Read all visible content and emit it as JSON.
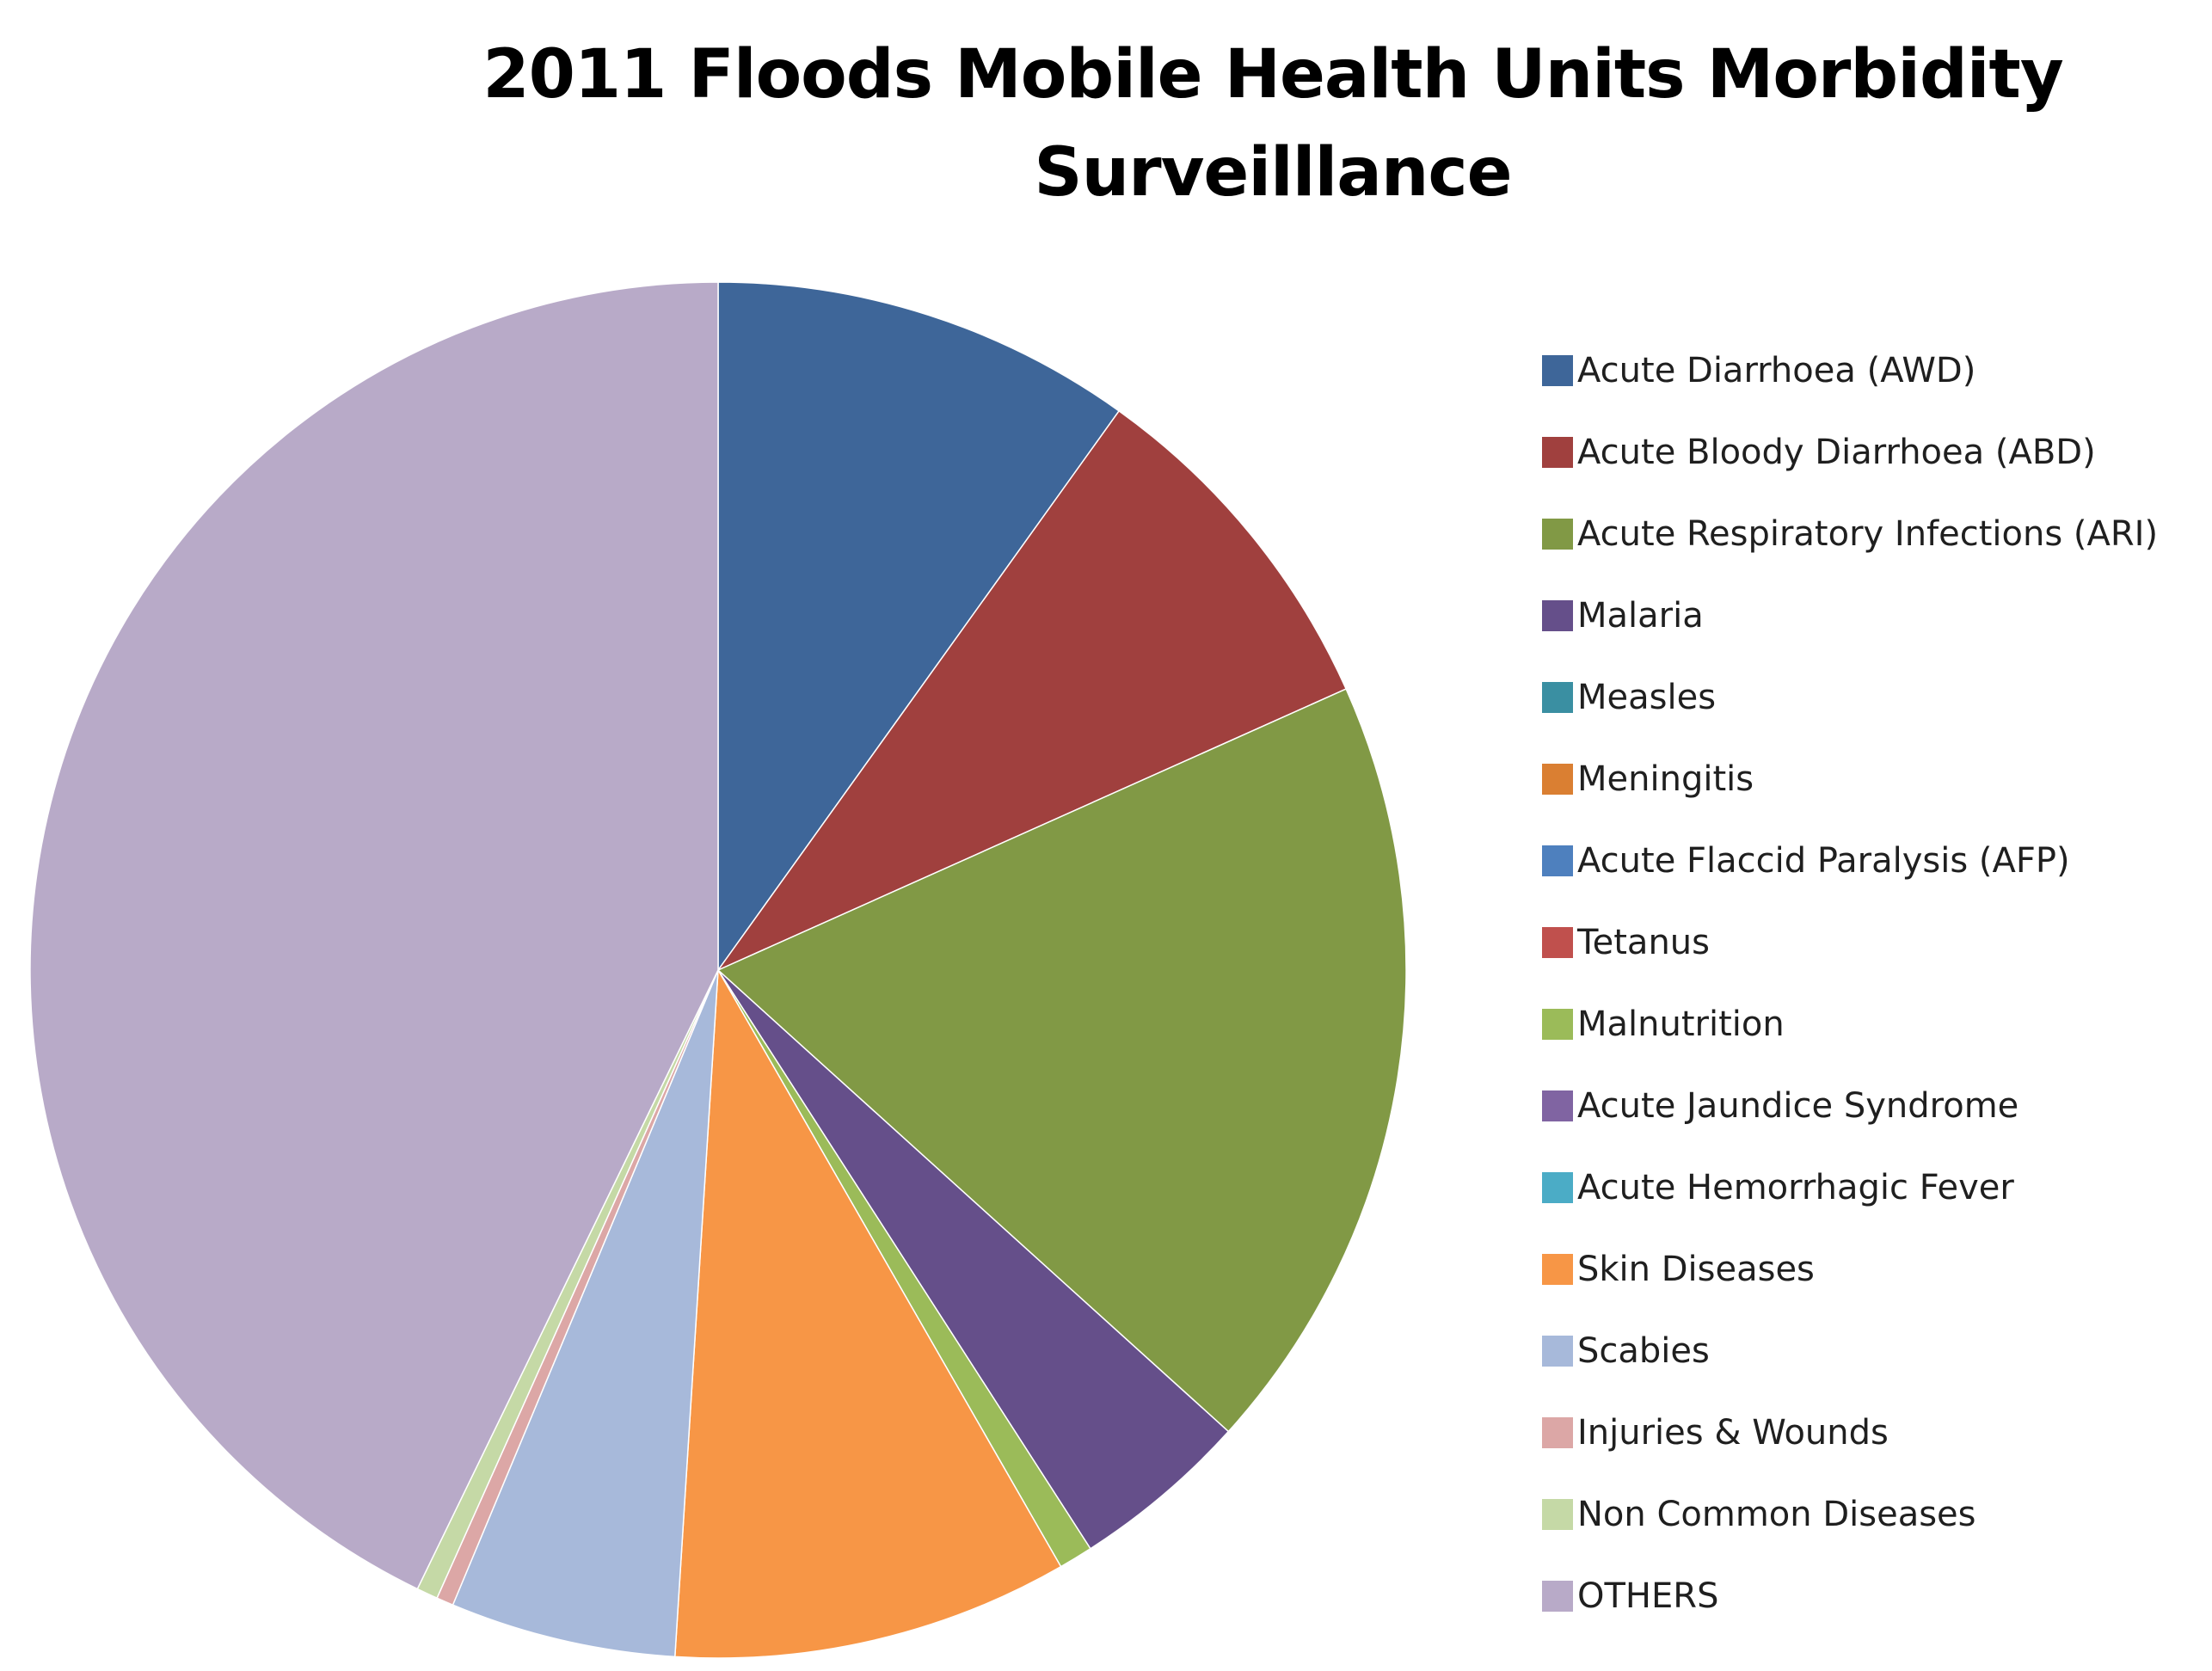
{
  "chart_data": {
    "type": "pie",
    "title": [
      "2011 Floods Mobile Health Units Morbidity",
      "Surveilllance"
    ],
    "legend_position": "right",
    "start_angle_deg": 0,
    "direction": "clockwise",
    "slices": [
      {
        "label": "Acute Diarrhoea (AWD)",
        "value": 9.9,
        "color": "#3E6699"
      },
      {
        "label": "Acute Bloody Diarrhoea (ABD)",
        "value": 8.4,
        "color": "#A0403E"
      },
      {
        "label": "Acute Respiratory Infections (ARI)",
        "value": 18.4,
        "color": "#819945"
      },
      {
        "label": "Malaria",
        "value": 4.2,
        "color": "#654F8A"
      },
      {
        "label": "Measles",
        "value": 0,
        "color": "#3A8FA2"
      },
      {
        "label": "Meningitis",
        "value": 0,
        "color": "#DA7F32"
      },
      {
        "label": "Acute Flaccid Paralysis (AFP)",
        "value": 0,
        "color": "#4E80BE"
      },
      {
        "label": "Tetanus",
        "value": 0,
        "color": "#C0504D"
      },
      {
        "label": "Malnutrition",
        "value": 0.8,
        "color": "#9BBB59"
      },
      {
        "label": "Acute Jaundice Syndrome",
        "value": 0,
        "color": "#8064A2"
      },
      {
        "label": "Acute Hemorrhagic Fever",
        "value": 0,
        "color": "#4BACC6"
      },
      {
        "label": "Skin Diseases",
        "value": 9.3,
        "color": "#F79646"
      },
      {
        "label": "Scabies",
        "value": 5.3,
        "color": "#A7B9DA"
      },
      {
        "label": "Injuries & Wounds",
        "value": 0.4,
        "color": "#DCA7A6"
      },
      {
        "label": "Non Common Diseases",
        "value": 0.5,
        "color": "#C5D9A6"
      },
      {
        "label": "OTHERS",
        "value": 42.8,
        "color": "#B8AAC8"
      }
    ]
  }
}
